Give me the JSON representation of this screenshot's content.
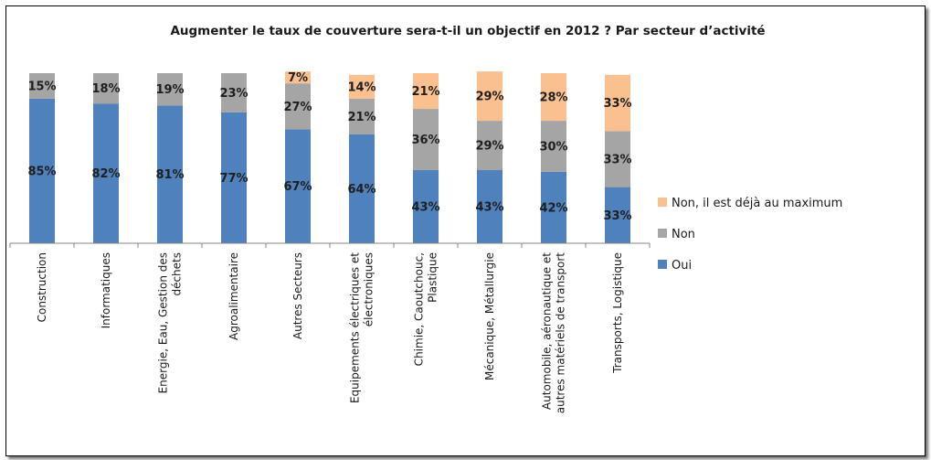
{
  "chart_data": {
    "type": "bar",
    "stacked": true,
    "title": "Augmenter le taux de couverture sera-t-il un objectif en 2012 ?  Par secteur d’activité",
    "categories": [
      [
        "Construction"
      ],
      [
        "Informatiques"
      ],
      [
        "Energie, Eau, Gestion des",
        "déchets"
      ],
      [
        "Agroalimentaire"
      ],
      [
        "Autres Secteurs"
      ],
      [
        "Equipements électriques et",
        "électroniques"
      ],
      [
        "Chimie, Caoutchouc,",
        "Plastique"
      ],
      [
        "Mécanique, Métallurgie"
      ],
      [
        "Automobile, aéronautique et",
        "autres matériels de transport"
      ],
      [
        "Transports, Logistique"
      ]
    ],
    "series": [
      {
        "name": "Oui",
        "color": "#4f81bd",
        "values": [
          85,
          82,
          81,
          77,
          67,
          64,
          43,
          43,
          42,
          33
        ]
      },
      {
        "name": "Non",
        "color": "#a5a5a5",
        "values": [
          15,
          18,
          19,
          23,
          27,
          21,
          36,
          29,
          30,
          33
        ]
      },
      {
        "name": "Non, il est déjà au maximum",
        "color": "#fac090",
        "values": [
          0,
          0,
          0,
          0,
          7,
          14,
          21,
          29,
          28,
          33
        ]
      }
    ],
    "legend_order": [
      "Non, il est déjà au maximum",
      "Non",
      "Oui"
    ],
    "value_suffix": "%",
    "ylim": [
      0,
      100
    ],
    "legend_position": "right",
    "grid": false
  }
}
